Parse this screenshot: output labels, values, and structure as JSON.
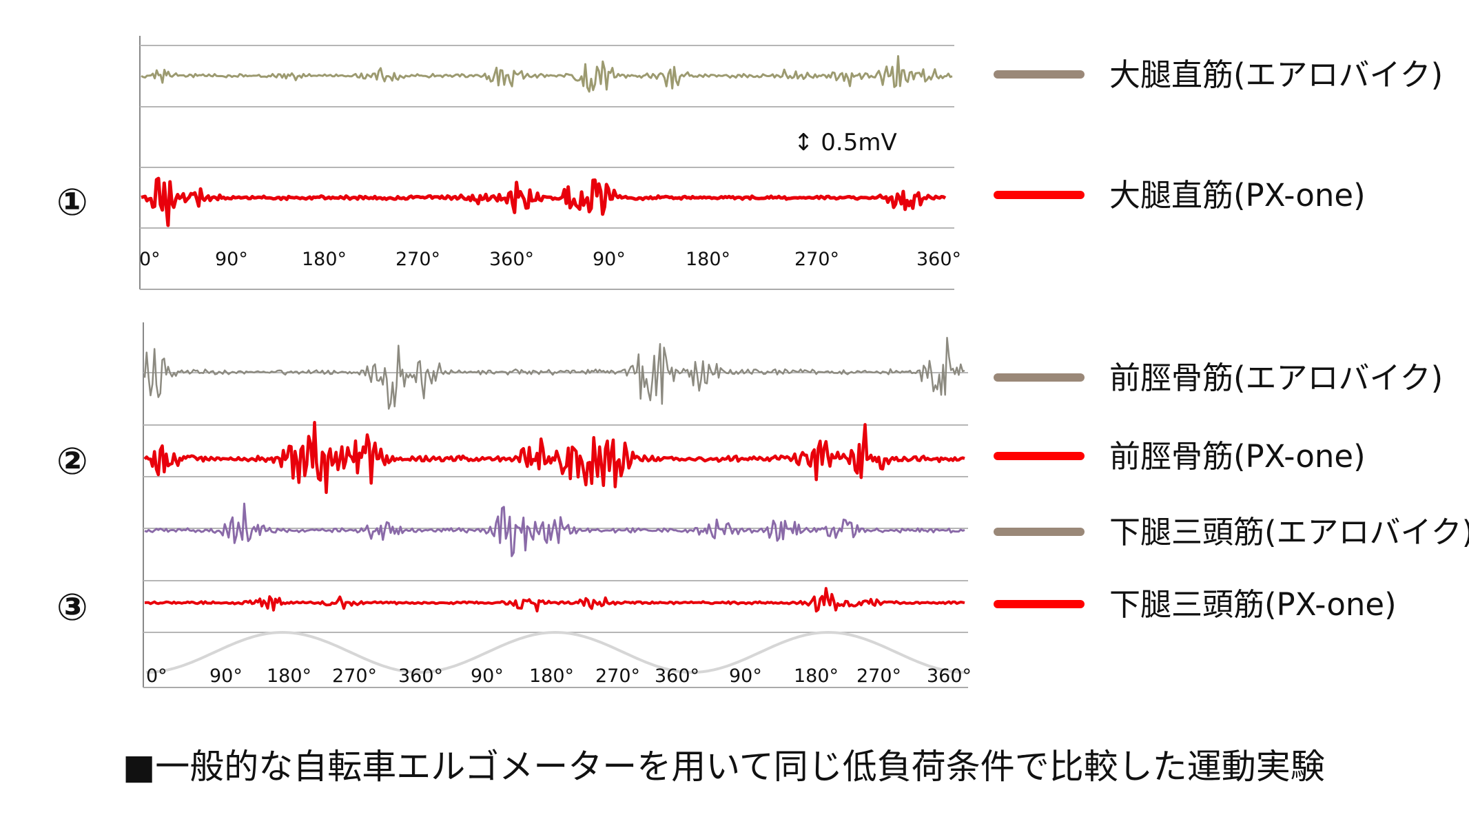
{
  "chart_data": [
    {
      "type": "line",
      "panel": "①",
      "x_ticks": [
        "0°",
        "90°",
        "180°",
        "270°",
        "360°",
        "90°",
        "180°",
        "270°",
        "360°"
      ],
      "scale_bar": "↕ 0.5mV",
      "grid": true,
      "series": [
        {
          "name": "大腿直筋(エアロバイク)",
          "color": "#9c9a70",
          "bursts": [
            [
              0.02,
              0.3
            ],
            [
              0.18,
              0.15
            ],
            [
              0.3,
              0.2
            ],
            [
              0.45,
              0.45
            ],
            [
              0.56,
              0.8
            ],
            [
              0.65,
              0.4
            ],
            [
              0.8,
              0.2
            ],
            [
              0.87,
              0.35
            ],
            [
              0.93,
              0.7
            ],
            [
              0.98,
              0.3
            ]
          ]
        },
        {
          "name": "大腿直筋(PX-one)",
          "color": "#e8000b",
          "bursts": [
            [
              0.03,
              0.9
            ],
            [
              0.07,
              0.3
            ],
            [
              0.42,
              0.15
            ],
            [
              0.47,
              0.5
            ],
            [
              0.54,
              0.5
            ],
            [
              0.57,
              0.6
            ],
            [
              0.95,
              0.5
            ]
          ]
        }
      ]
    },
    {
      "type": "line",
      "panel": "②③",
      "x_ticks": [
        "0°",
        "90°",
        "180°",
        "270°",
        "360°",
        "90°",
        "180°",
        "270°",
        "360°",
        "90°",
        "180°",
        "270°",
        "360°"
      ],
      "grid": true,
      "series": [
        {
          "name": "前脛骨筋(エアロバイク)",
          "color": "#8c8a80",
          "bursts": [
            [
              0.01,
              0.8
            ],
            [
              0.3,
              0.9
            ],
            [
              0.34,
              0.5
            ],
            [
              0.62,
              1.0
            ],
            [
              0.68,
              0.4
            ],
            [
              0.97,
              1.0
            ]
          ]
        },
        {
          "name": "前脛骨筋(PX-one)",
          "color": "#e8000b",
          "bursts": [
            [
              0.02,
              0.3
            ],
            [
              0.19,
              0.6
            ],
            [
              0.22,
              1.0
            ],
            [
              0.27,
              0.6
            ],
            [
              0.48,
              0.5
            ],
            [
              0.53,
              1.0
            ],
            [
              0.57,
              0.7
            ],
            [
              0.82,
              0.6
            ],
            [
              0.88,
              0.7
            ]
          ]
        },
        {
          "name": "下腿三頭筋(エアロバイク)",
          "color": "#8a6aa8",
          "bursts": [
            [
              0.12,
              0.7
            ],
            [
              0.29,
              0.3
            ],
            [
              0.45,
              1.0
            ],
            [
              0.5,
              0.4
            ],
            [
              0.7,
              0.3
            ],
            [
              0.78,
              0.5
            ],
            [
              0.85,
              0.4
            ]
          ]
        },
        {
          "name": "下腿三頭筋(PX-one)",
          "color": "#e8000b",
          "bursts": [
            [
              0.15,
              0.4
            ],
            [
              0.24,
              0.25
            ],
            [
              0.47,
              0.5
            ],
            [
              0.55,
              0.3
            ],
            [
              0.83,
              0.8
            ],
            [
              0.88,
              0.4
            ]
          ]
        }
      ]
    }
  ],
  "section_labels": [
    "①",
    "②",
    "③"
  ],
  "legend": [
    {
      "label": "大腿直筋(エアロバイク)",
      "color": "#9a8878"
    },
    {
      "label": "大腿直筋(PX-one)",
      "color": "#ff0000"
    },
    {
      "label": "前脛骨筋(エアロバイク)",
      "color": "#9a8878"
    },
    {
      "label": "前脛骨筋(PX-one)",
      "color": "#ff0000"
    },
    {
      "label": "下腿三頭筋(エアロバイク)",
      "color": "#9a8878"
    },
    {
      "label": "下腿三頭筋(PX-one)",
      "color": "#ff0000"
    }
  ],
  "caption": "■一般的な自転車エルゴメーターを用いて同じ低負荷条件で比較した運動実験"
}
